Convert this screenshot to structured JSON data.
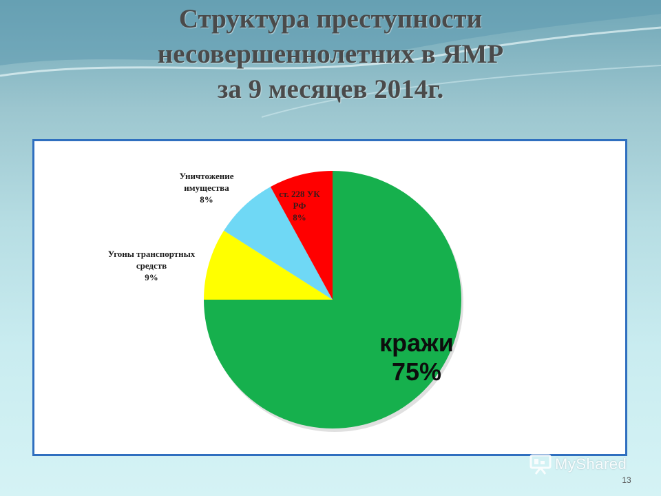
{
  "slide": {
    "title_lines": [
      "Структура преступности",
      "несовершеннолетних в ЯМР",
      "за 9 месяцев 2014г."
    ],
    "page_number": "13",
    "watermark": "MyShared"
  },
  "chart_data": {
    "type": "pie",
    "title": "",
    "slices": [
      {
        "label_lines": [
          "кражи",
          "75%"
        ],
        "value": 75,
        "color": "#16b04d"
      },
      {
        "label_lines": [
          "Угоны транспортных",
          "средств",
          "9%"
        ],
        "value": 9,
        "color": "#ffff00"
      },
      {
        "label_lines": [
          "Уничтожение",
          "имущества",
          "8%"
        ],
        "value": 8,
        "color": "#6fd8f5"
      },
      {
        "label_lines": [
          "ст. 228 УК",
          "РФ",
          "8%"
        ],
        "value": 8,
        "color": "#ff0000"
      }
    ],
    "start_angle_deg": 0,
    "direction": "clockwise",
    "legend": "none"
  }
}
